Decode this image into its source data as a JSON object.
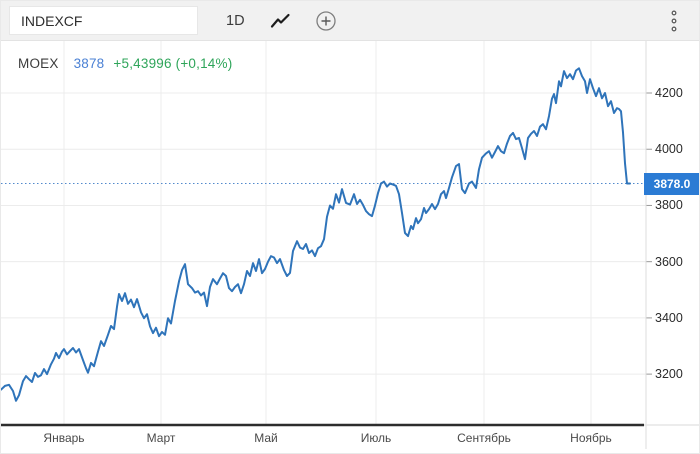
{
  "toolbar": {
    "symbol_value": "INDEXCF",
    "interval_label": "1D"
  },
  "legend": {
    "symbol": "MOEX",
    "price": "3878",
    "change": "+5,43996 (+0,14%)"
  },
  "price_label": "3878.0",
  "colors": {
    "line": "#2f74ba",
    "price_box": "#2b7bd4",
    "dotted_line": "#5189cc",
    "legend_price": "#4a80d4",
    "legend_change": "#2fa55a",
    "grid": "#ececec",
    "axis_line": "#2d2d2d",
    "y_axis_line": "#dcdcdc",
    "tick": "#999999"
  },
  "chart_data": {
    "type": "line",
    "symbol": "MOEX",
    "interval": "1D",
    "current_price": 3878.0,
    "change_abs": "+5,43996",
    "change_pct": "+0,14%",
    "legend_position": "top-left",
    "grid": true,
    "x_axis": {
      "labels": [
        "Январь",
        "Март",
        "Май",
        "Июль",
        "Сентябрь",
        "Ноябрь"
      ],
      "positions": [
        63,
        160,
        265,
        375,
        483,
        590
      ]
    },
    "y_axis": {
      "ticks": [
        3200,
        3400,
        3600,
        3800,
        4000,
        4200
      ],
      "domain": [
        3019,
        4385
      ],
      "side": "right"
    },
    "points": [
      [
        0,
        3145
      ],
      [
        4,
        3158
      ],
      [
        8,
        3162
      ],
      [
        12,
        3140
      ],
      [
        15,
        3105
      ],
      [
        18,
        3125
      ],
      [
        22,
        3175
      ],
      [
        25,
        3193
      ],
      [
        28,
        3182
      ],
      [
        31,
        3172
      ],
      [
        34,
        3204
      ],
      [
        37,
        3190
      ],
      [
        40,
        3196
      ],
      [
        43,
        3218
      ],
      [
        46,
        3200
      ],
      [
        50,
        3235
      ],
      [
        53,
        3255
      ],
      [
        55,
        3275
      ],
      [
        58,
        3257
      ],
      [
        61,
        3280
      ],
      [
        63,
        3289
      ],
      [
        66,
        3270
      ],
      [
        69,
        3282
      ],
      [
        72,
        3293
      ],
      [
        75,
        3277
      ],
      [
        78,
        3289
      ],
      [
        82,
        3250
      ],
      [
        85,
        3221
      ],
      [
        87,
        3205
      ],
      [
        90,
        3240
      ],
      [
        93,
        3228
      ],
      [
        97,
        3280
      ],
      [
        100,
        3317
      ],
      [
        103,
        3300
      ],
      [
        107,
        3340
      ],
      [
        110,
        3371
      ],
      [
        113,
        3360
      ],
      [
        116,
        3440
      ],
      [
        118,
        3485
      ],
      [
        121,
        3460
      ],
      [
        124,
        3488
      ],
      [
        127,
        3450
      ],
      [
        130,
        3465
      ],
      [
        133,
        3438
      ],
      [
        136,
        3467
      ],
      [
        140,
        3420
      ],
      [
        143,
        3399
      ],
      [
        146,
        3413
      ],
      [
        149,
        3370
      ],
      [
        152,
        3346
      ],
      [
        155,
        3365
      ],
      [
        158,
        3335
      ],
      [
        161,
        3350
      ],
      [
        164,
        3340
      ],
      [
        167,
        3399
      ],
      [
        170,
        3380
      ],
      [
        174,
        3460
      ],
      [
        178,
        3530
      ],
      [
        181,
        3570
      ],
      [
        184,
        3591
      ],
      [
        187,
        3520
      ],
      [
        191,
        3506
      ],
      [
        194,
        3490
      ],
      [
        197,
        3495
      ],
      [
        200,
        3480
      ],
      [
        203,
        3490
      ],
      [
        206,
        3442
      ],
      [
        209,
        3510
      ],
      [
        212,
        3538
      ],
      [
        216,
        3520
      ],
      [
        219,
        3540
      ],
      [
        222,
        3559
      ],
      [
        225,
        3549
      ],
      [
        228,
        3506
      ],
      [
        231,
        3495
      ],
      [
        234,
        3510
      ],
      [
        237,
        3520
      ],
      [
        240,
        3488
      ],
      [
        243,
        3520
      ],
      [
        246,
        3567
      ],
      [
        249,
        3549
      ],
      [
        252,
        3595
      ],
      [
        255,
        3567
      ],
      [
        258,
        3609
      ],
      [
        261,
        3559
      ],
      [
        264,
        3574
      ],
      [
        267,
        3600
      ],
      [
        270,
        3620
      ],
      [
        273,
        3615
      ],
      [
        276,
        3595
      ],
      [
        279,
        3609
      ],
      [
        283,
        3570
      ],
      [
        286,
        3549
      ],
      [
        289,
        3560
      ],
      [
        292,
        3638
      ],
      [
        296,
        3673
      ],
      [
        299,
        3650
      ],
      [
        302,
        3645
      ],
      [
        305,
        3663
      ],
      [
        308,
        3631
      ],
      [
        311,
        3640
      ],
      [
        314,
        3620
      ],
      [
        317,
        3648
      ],
      [
        320,
        3655
      ],
      [
        323,
        3680
      ],
      [
        326,
        3760
      ],
      [
        329,
        3800
      ],
      [
        332,
        3788
      ],
      [
        335,
        3840
      ],
      [
        338,
        3810
      ],
      [
        341,
        3858
      ],
      [
        345,
        3809
      ],
      [
        349,
        3803
      ],
      [
        353,
        3840
      ],
      [
        356,
        3805
      ],
      [
        359,
        3820
      ],
      [
        362,
        3802
      ],
      [
        365,
        3780
      ],
      [
        368,
        3769
      ],
      [
        371,
        3762
      ],
      [
        374,
        3800
      ],
      [
        377,
        3844
      ],
      [
        380,
        3878
      ],
      [
        383,
        3885
      ],
      [
        386,
        3867
      ],
      [
        389,
        3878
      ],
      [
        392,
        3874
      ],
      [
        395,
        3870
      ],
      [
        398,
        3840
      ],
      [
        401,
        3773
      ],
      [
        404,
        3702
      ],
      [
        407,
        3691
      ],
      [
        410,
        3727
      ],
      [
        412,
        3716
      ],
      [
        415,
        3755
      ],
      [
        417,
        3737
      ],
      [
        420,
        3751
      ],
      [
        423,
        3791
      ],
      [
        425,
        3773
      ],
      [
        428,
        3787
      ],
      [
        431,
        3805
      ],
      [
        434,
        3787
      ],
      [
        437,
        3805
      ],
      [
        440,
        3840
      ],
      [
        443,
        3851
      ],
      [
        445,
        3826
      ],
      [
        448,
        3862
      ],
      [
        451,
        3900
      ],
      [
        455,
        3940
      ],
      [
        458,
        3947
      ],
      [
        461,
        3858
      ],
      [
        464,
        3844
      ],
      [
        468,
        3878
      ],
      [
        471,
        3885
      ],
      [
        475,
        3862
      ],
      [
        478,
        3929
      ],
      [
        481,
        3970
      ],
      [
        485,
        3985
      ],
      [
        488,
        3993
      ],
      [
        491,
        3970
      ],
      [
        494,
        3990
      ],
      [
        497,
        4011
      ],
      [
        500,
        3993
      ],
      [
        503,
        3986
      ],
      [
        506,
        4020
      ],
      [
        509,
        4047
      ],
      [
        512,
        4058
      ],
      [
        515,
        4036
      ],
      [
        518,
        4040
      ],
      [
        521,
        4004
      ],
      [
        524,
        3965
      ],
      [
        527,
        4040
      ],
      [
        530,
        4055
      ],
      [
        533,
        4065
      ],
      [
        536,
        4047
      ],
      [
        539,
        4080
      ],
      [
        542,
        4089
      ],
      [
        545,
        4071
      ],
      [
        548,
        4118
      ],
      [
        551,
        4180
      ],
      [
        553,
        4196
      ],
      [
        555,
        4164
      ],
      [
        558,
        4242
      ],
      [
        560,
        4224
      ],
      [
        563,
        4278
      ],
      [
        566,
        4253
      ],
      [
        569,
        4267
      ],
      [
        572,
        4249
      ],
      [
        575,
        4280
      ],
      [
        578,
        4288
      ],
      [
        581,
        4260
      ],
      [
        584,
        4242
      ],
      [
        586,
        4200
      ],
      [
        589,
        4249
      ],
      [
        592,
        4217
      ],
      [
        595,
        4189
      ],
      [
        598,
        4217
      ],
      [
        601,
        4181
      ],
      [
        604,
        4200
      ],
      [
        607,
        4153
      ],
      [
        610,
        4171
      ],
      [
        613,
        4129
      ],
      [
        616,
        4146
      ],
      [
        618,
        4143
      ],
      [
        620,
        4135
      ],
      [
        622,
        4060
      ],
      [
        624,
        3950
      ],
      [
        626,
        3878
      ],
      [
        629,
        3878
      ]
    ]
  }
}
